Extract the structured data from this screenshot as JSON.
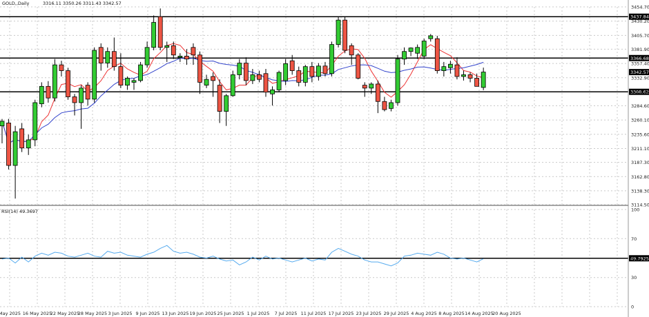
{
  "header": {
    "symbol": "GOLD,,Daily",
    "ohlc": "3316.11 3350.26 3311.43 3342.57"
  },
  "colors": {
    "bull": "#33cc33",
    "bear": "#ee5544",
    "ma_fast": "#ee3333",
    "ma_slow": "#3344cc",
    "rsi": "#55aaee",
    "level": "#000000"
  },
  "chart_data": [
    {
      "type": "candlestick",
      "ylim": [
        3114.5,
        3454.7
      ],
      "yticks": [
        "3454.70",
        "3430.20",
        "3405.70",
        "3381.90",
        "3357.40",
        "3332.90",
        "3308.40",
        "3284.60",
        "3260.10",
        "3235.60",
        "3211.10",
        "3187.30",
        "3162.80",
        "3138.30",
        "3114.50"
      ],
      "xticks": [
        "May 2025",
        "16 May 2025",
        "22 May 2025",
        "28 May 2025",
        "3 Jun 2025",
        "9 Jun 2025",
        "13 Jun 2025",
        "19 Jun 2025",
        "25 Jun 2025",
        "1 Jul 2025",
        "7 Jul 2025",
        "11 Jul 2025",
        "17 Jul 2025",
        "23 Jul 2025",
        "29 Jul 2025",
        "4 Aug 2025",
        "8 Aug 2025",
        "14 Aug 2025",
        "20 Aug 2025"
      ],
      "levels": [
        {
          "label": "3437.84",
          "value": 3437.84
        },
        {
          "label": "3366.68",
          "value": 3366.68
        },
        {
          "label": "3342.57",
          "value": 3342.57
        },
        {
          "label": "3308.62",
          "value": 3308.62
        }
      ],
      "candles": [
        {
          "o": 3250,
          "h": 3262,
          "l": 3220,
          "c": 3258
        },
        {
          "o": 3255,
          "h": 3262,
          "l": 3175,
          "c": 3182
        },
        {
          "o": 3182,
          "h": 3250,
          "l": 3125,
          "c": 3240
        },
        {
          "o": 3245,
          "h": 3255,
          "l": 3205,
          "c": 3212
        },
        {
          "o": 3212,
          "h": 3235,
          "l": 3200,
          "c": 3226
        },
        {
          "o": 3226,
          "h": 3295,
          "l": 3215,
          "c": 3290
        },
        {
          "o": 3288,
          "h": 3325,
          "l": 3282,
          "c": 3318
        },
        {
          "o": 3318,
          "h": 3327,
          "l": 3290,
          "c": 3298
        },
        {
          "o": 3298,
          "h": 3365,
          "l": 3292,
          "c": 3355
        },
        {
          "o": 3355,
          "h": 3362,
          "l": 3335,
          "c": 3345
        },
        {
          "o": 3345,
          "h": 3350,
          "l": 3295,
          "c": 3300
        },
        {
          "o": 3300,
          "h": 3305,
          "l": 3268,
          "c": 3290
        },
        {
          "o": 3290,
          "h": 3320,
          "l": 3245,
          "c": 3315
        },
        {
          "o": 3320,
          "h": 3325,
          "l": 3285,
          "c": 3296
        },
        {
          "o": 3296,
          "h": 3385,
          "l": 3290,
          "c": 3380
        },
        {
          "o": 3385,
          "h": 3392,
          "l": 3345,
          "c": 3358
        },
        {
          "o": 3358,
          "h": 3385,
          "l": 3350,
          "c": 3378
        },
        {
          "o": 3378,
          "h": 3402,
          "l": 3345,
          "c": 3352
        },
        {
          "o": 3352,
          "h": 3375,
          "l": 3315,
          "c": 3320
        },
        {
          "o": 3320,
          "h": 3335,
          "l": 3312,
          "c": 3332
        },
        {
          "o": 3325,
          "h": 3332,
          "l": 3312,
          "c": 3328
        },
        {
          "o": 3328,
          "h": 3360,
          "l": 3325,
          "c": 3355
        },
        {
          "o": 3355,
          "h": 3395,
          "l": 3350,
          "c": 3385
        },
        {
          "o": 3385,
          "h": 3440,
          "l": 3380,
          "c": 3428
        },
        {
          "o": 3438,
          "h": 3452,
          "l": 3380,
          "c": 3385
        },
        {
          "o": 3385,
          "h": 3395,
          "l": 3360,
          "c": 3388
        },
        {
          "o": 3388,
          "h": 3395,
          "l": 3365,
          "c": 3372
        },
        {
          "o": 3368,
          "h": 3375,
          "l": 3360,
          "c": 3370
        },
        {
          "o": 3370,
          "h": 3382,
          "l": 3355,
          "c": 3365
        },
        {
          "o": 3385,
          "h": 3392,
          "l": 3355,
          "c": 3372
        },
        {
          "o": 3372,
          "h": 3378,
          "l": 3305,
          "c": 3325
        },
        {
          "o": 3320,
          "h": 3338,
          "l": 3315,
          "c": 3330
        },
        {
          "o": 3335,
          "h": 3342,
          "l": 3300,
          "c": 3328
        },
        {
          "o": 3320,
          "h": 3330,
          "l": 3255,
          "c": 3275
        },
        {
          "o": 3275,
          "h": 3305,
          "l": 3250,
          "c": 3302
        },
        {
          "o": 3302,
          "h": 3345,
          "l": 3300,
          "c": 3338
        },
        {
          "o": 3338,
          "h": 3365,
          "l": 3330,
          "c": 3358
        },
        {
          "o": 3358,
          "h": 3368,
          "l": 3320,
          "c": 3328
        },
        {
          "o": 3328,
          "h": 3348,
          "l": 3322,
          "c": 3338
        },
        {
          "o": 3338,
          "h": 3345,
          "l": 3325,
          "c": 3330
        },
        {
          "o": 3340,
          "h": 3348,
          "l": 3300,
          "c": 3308
        },
        {
          "o": 3305,
          "h": 3318,
          "l": 3285,
          "c": 3312
        },
        {
          "o": 3312,
          "h": 3345,
          "l": 3308,
          "c": 3342
        },
        {
          "o": 3328,
          "h": 3365,
          "l": 3320,
          "c": 3357
        },
        {
          "o": 3362,
          "h": 3372,
          "l": 3338,
          "c": 3345
        },
        {
          "o": 3345,
          "h": 3352,
          "l": 3318,
          "c": 3325
        },
        {
          "o": 3325,
          "h": 3355,
          "l": 3318,
          "c": 3352
        },
        {
          "o": 3352,
          "h": 3360,
          "l": 3325,
          "c": 3335
        },
        {
          "o": 3335,
          "h": 3358,
          "l": 3328,
          "c": 3353
        },
        {
          "o": 3353,
          "h": 3360,
          "l": 3335,
          "c": 3340
        },
        {
          "o": 3340,
          "h": 3395,
          "l": 3335,
          "c": 3390
        },
        {
          "o": 3390,
          "h": 3438,
          "l": 3385,
          "c": 3432
        },
        {
          "o": 3432,
          "h": 3438,
          "l": 3375,
          "c": 3380
        },
        {
          "o": 3388,
          "h": 3392,
          "l": 3355,
          "c": 3372
        },
        {
          "o": 3372,
          "h": 3375,
          "l": 3330,
          "c": 3332
        },
        {
          "o": 3320,
          "h": 3325,
          "l": 3300,
          "c": 3315
        },
        {
          "o": 3315,
          "h": 3325,
          "l": 3305,
          "c": 3322
        },
        {
          "o": 3322,
          "h": 3328,
          "l": 3272,
          "c": 3292
        },
        {
          "o": 3292,
          "h": 3300,
          "l": 3275,
          "c": 3278
        },
        {
          "o": 3280,
          "h": 3295,
          "l": 3275,
          "c": 3290
        },
        {
          "o": 3290,
          "h": 3372,
          "l": 3285,
          "c": 3365
        },
        {
          "o": 3365,
          "h": 3385,
          "l": 3355,
          "c": 3378
        },
        {
          "o": 3378,
          "h": 3385,
          "l": 3370,
          "c": 3384
        },
        {
          "o": 3375,
          "h": 3390,
          "l": 3365,
          "c": 3385
        },
        {
          "o": 3370,
          "h": 3400,
          "l": 3365,
          "c": 3396
        },
        {
          "o": 3400,
          "h": 3408,
          "l": 3395,
          "c": 3405
        },
        {
          "o": 3400,
          "h": 3405,
          "l": 3340,
          "c": 3345
        },
        {
          "o": 3345,
          "h": 3360,
          "l": 3335,
          "c": 3352
        },
        {
          "o": 3350,
          "h": 3362,
          "l": 3340,
          "c": 3356
        },
        {
          "o": 3355,
          "h": 3368,
          "l": 3330,
          "c": 3335
        },
        {
          "o": 3335,
          "h": 3345,
          "l": 3328,
          "c": 3338
        },
        {
          "o": 3338,
          "h": 3342,
          "l": 3325,
          "c": 3332
        },
        {
          "o": 3332,
          "h": 3340,
          "l": 3318,
          "c": 3318
        },
        {
          "o": 3316.11,
          "h": 3350.26,
          "l": 3311.43,
          "c": 3342.57
        }
      ]
    },
    {
      "type": "line",
      "title": "RSI(14) 49.3697",
      "ylim": [
        0,
        100
      ],
      "yticks": [
        "100",
        "70",
        "50",
        "30",
        "0"
      ],
      "level": {
        "label": "49.7925",
        "value": 49.7925
      },
      "values": [
        49,
        50,
        45,
        51,
        46,
        52,
        55,
        53,
        56,
        55,
        52,
        51,
        53,
        55,
        52,
        51,
        57,
        55,
        56,
        53,
        52,
        51,
        54,
        56,
        60,
        63,
        57,
        55,
        56,
        54,
        51,
        50,
        52,
        49,
        47,
        48,
        43,
        46,
        51,
        48,
        52,
        49,
        50,
        48,
        46,
        48,
        50,
        47,
        49,
        48,
        56,
        60,
        57,
        54,
        52,
        48,
        46,
        46,
        44,
        42,
        45,
        52,
        53,
        55,
        54,
        53,
        56,
        54,
        50,
        49,
        50,
        48,
        46,
        49.37
      ]
    }
  ]
}
